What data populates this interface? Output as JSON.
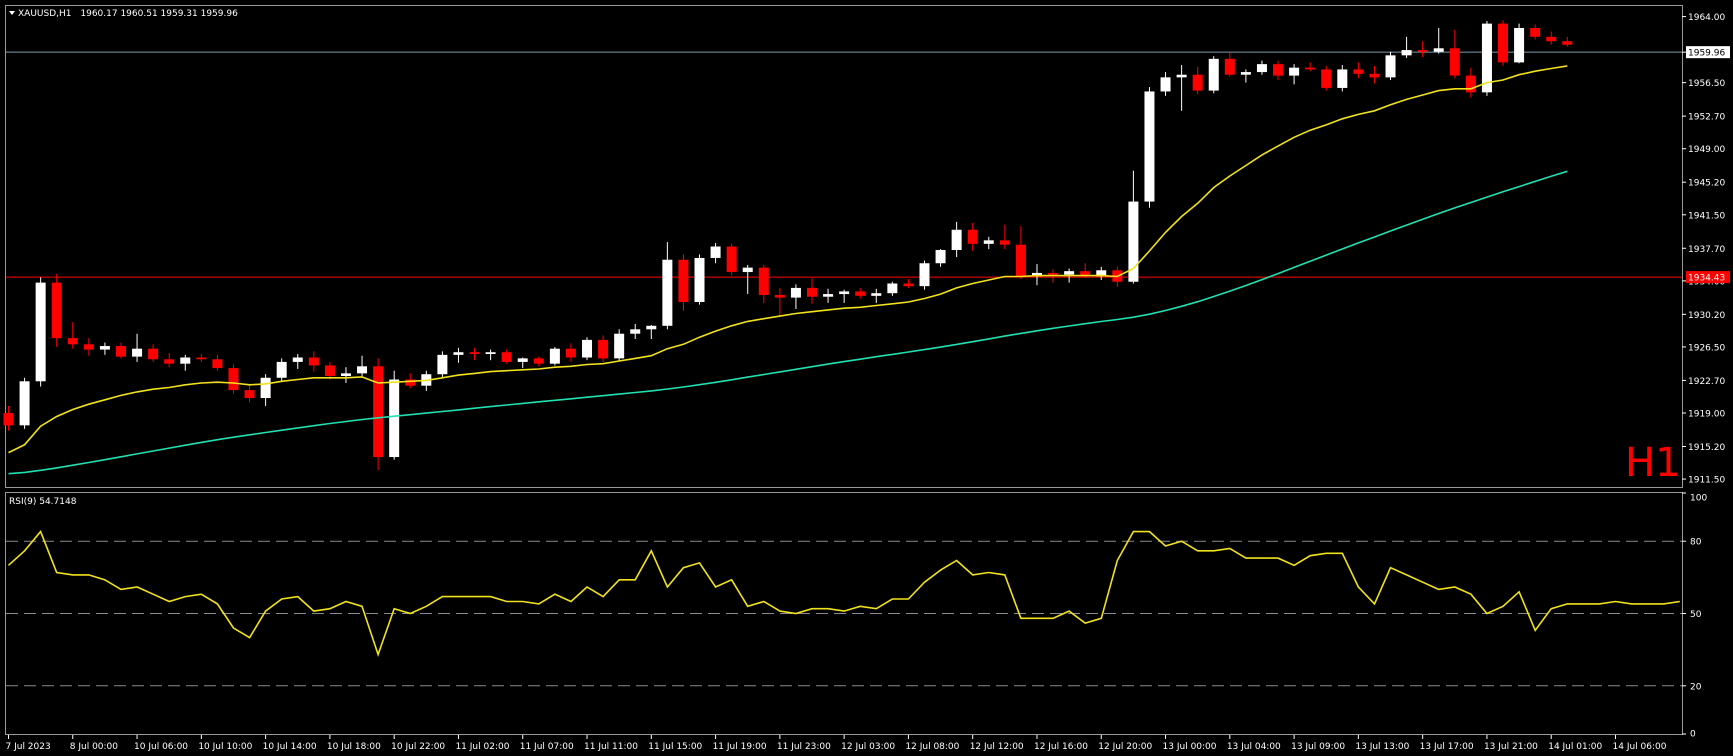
{
  "chart_data": {
    "type": "candlestick",
    "symbol": "XAUUSD,H1",
    "ohlc_header": "1960.17 1960.51 1959.31 1959.96",
    "timeframe_label": "H1",
    "colors": {
      "background": "#000000",
      "bull": "#ffffff",
      "bear": "#ff0000",
      "wick_bull": "#ffffff",
      "wick_bear": "#ff0000",
      "ma_fast": "#f2e21b",
      "ma_slow": "#20e0b0",
      "rsi": "#f2e21b",
      "ask_line": "#7f9aaa",
      "level_line": "#ff0000",
      "grid": "#ffffff"
    },
    "price_axis": {
      "ylim": [
        1910.6,
        1965.2
      ],
      "ticks": [
        "1964.00",
        "1959.96",
        "1956.50",
        "1952.70",
        "1949.00",
        "1945.20",
        "1941.50",
        "1937.70",
        "1934.00",
        "1930.20",
        "1926.50",
        "1922.70",
        "1919.00",
        "1915.20",
        "1911.50"
      ],
      "tick_values": [
        1964.0,
        1959.96,
        1956.5,
        1952.7,
        1949.0,
        1945.2,
        1941.5,
        1937.7,
        1934.0,
        1930.2,
        1926.5,
        1922.7,
        1919.0,
        1915.2,
        1911.5
      ],
      "bid_label": "1959.96",
      "bid_value": 1959.96,
      "level_label": "1934.43",
      "level_value": 1934.43
    },
    "time_axis": {
      "labels": [
        "7 Jul 2023",
        "8 Jul 00:00",
        "10 Jul 06:00",
        "10 Jul 10:00",
        "10 Jul 14:00",
        "10 Jul 18:00",
        "10 Jul 22:00",
        "11 Jul 02:00",
        "11 Jul 07:00",
        "11 Jul 11:00",
        "11 Jul 15:00",
        "11 Jul 19:00",
        "11 Jul 23:00",
        "12 Jul 03:00",
        "12 Jul 08:00",
        "12 Jul 12:00",
        "12 Jul 16:00",
        "12 Jul 20:00",
        "13 Jul 00:00",
        "13 Jul 04:00",
        "13 Jul 09:00",
        "13 Jul 13:00",
        "13 Jul 17:00",
        "13 Jul 21:00",
        "14 Jul 01:00",
        "14 Jul 06:00"
      ],
      "label_bar_index": [
        0,
        4,
        8,
        12,
        16,
        20,
        24,
        28,
        32,
        36,
        40,
        44,
        48,
        52,
        56,
        60,
        64,
        68,
        72,
        76,
        80,
        84,
        88,
        92,
        96,
        100
      ]
    },
    "candles": [
      [
        1919.0,
        1919.8,
        1917.0,
        1917.6
      ],
      [
        1917.6,
        1923.0,
        1917.2,
        1922.6
      ],
      [
        1922.6,
        1934.4,
        1922.0,
        1933.8
      ],
      [
        1933.8,
        1934.8,
        1926.5,
        1927.5
      ],
      [
        1927.5,
        1929.3,
        1926.3,
        1926.8
      ],
      [
        1926.8,
        1927.5,
        1925.5,
        1926.2
      ],
      [
        1926.2,
        1927.0,
        1925.6,
        1926.6
      ],
      [
        1926.6,
        1927.0,
        1925.2,
        1925.4
      ],
      [
        1925.4,
        1928.0,
        1924.8,
        1926.3
      ],
      [
        1926.3,
        1926.8,
        1924.8,
        1925.1
      ],
      [
        1925.1,
        1925.8,
        1924.2,
        1924.6
      ],
      [
        1924.6,
        1925.6,
        1923.8,
        1925.3
      ],
      [
        1925.3,
        1925.7,
        1924.8,
        1925.1
      ],
      [
        1925.1,
        1925.6,
        1923.8,
        1924.1
      ],
      [
        1924.1,
        1924.5,
        1921.2,
        1921.6
      ],
      [
        1921.6,
        1922.2,
        1920.2,
        1920.7
      ],
      [
        1920.7,
        1923.4,
        1919.8,
        1923.0
      ],
      [
        1923.0,
        1925.2,
        1922.6,
        1924.8
      ],
      [
        1924.8,
        1925.7,
        1924.0,
        1925.3
      ],
      [
        1925.3,
        1926.0,
        1923.7,
        1924.4
      ],
      [
        1924.4,
        1924.8,
        1922.8,
        1923.2
      ],
      [
        1923.2,
        1924.2,
        1922.4,
        1923.5
      ],
      [
        1923.5,
        1925.5,
        1923.1,
        1924.3
      ],
      [
        1924.3,
        1925.2,
        1912.5,
        1914.0
      ],
      [
        1914.0,
        1923.8,
        1913.7,
        1922.8
      ],
      [
        1922.8,
        1923.5,
        1921.8,
        1922.1
      ],
      [
        1922.1,
        1923.8,
        1921.5,
        1923.4
      ],
      [
        1923.4,
        1926.0,
        1923.0,
        1925.6
      ],
      [
        1925.6,
        1926.4,
        1924.7,
        1925.9
      ],
      [
        1925.9,
        1926.4,
        1925.0,
        1925.7
      ],
      [
        1925.7,
        1926.2,
        1925.0,
        1925.9
      ],
      [
        1925.9,
        1926.2,
        1924.6,
        1924.8
      ],
      [
        1924.8,
        1925.3,
        1924.1,
        1925.2
      ],
      [
        1925.2,
        1925.4,
        1924.3,
        1924.6
      ],
      [
        1924.6,
        1926.5,
        1924.4,
        1926.3
      ],
      [
        1926.3,
        1926.9,
        1924.8,
        1925.3
      ],
      [
        1925.3,
        1927.6,
        1925.0,
        1927.3
      ],
      [
        1927.3,
        1927.8,
        1924.8,
        1925.2
      ],
      [
        1925.2,
        1928.5,
        1924.9,
        1928.0
      ],
      [
        1928.0,
        1929.1,
        1927.4,
        1928.5
      ],
      [
        1928.5,
        1929.0,
        1927.4,
        1928.9
      ],
      [
        1928.9,
        1938.4,
        1928.5,
        1936.4
      ],
      [
        1936.4,
        1937.0,
        1930.6,
        1931.6
      ],
      [
        1931.6,
        1937.0,
        1931.3,
        1936.6
      ],
      [
        1936.6,
        1938.3,
        1936.0,
        1937.9
      ],
      [
        1937.9,
        1938.2,
        1934.6,
        1935.0
      ],
      [
        1935.0,
        1935.8,
        1932.5,
        1935.5
      ],
      [
        1935.5,
        1935.8,
        1931.5,
        1932.4
      ],
      [
        1932.4,
        1933.2,
        1930.0,
        1932.1
      ],
      [
        1932.1,
        1933.6,
        1930.8,
        1933.2
      ],
      [
        1933.2,
        1934.3,
        1931.4,
        1932.2
      ],
      [
        1932.2,
        1933.1,
        1931.5,
        1932.5
      ],
      [
        1932.5,
        1933.0,
        1931.5,
        1932.8
      ],
      [
        1932.8,
        1933.2,
        1932.0,
        1932.3
      ],
      [
        1932.3,
        1933.1,
        1931.5,
        1932.6
      ],
      [
        1932.6,
        1933.9,
        1932.3,
        1933.7
      ],
      [
        1933.7,
        1934.2,
        1933.2,
        1933.4
      ],
      [
        1933.4,
        1936.3,
        1933.0,
        1936.0
      ],
      [
        1936.0,
        1937.6,
        1935.6,
        1937.5
      ],
      [
        1937.5,
        1940.7,
        1936.7,
        1939.8
      ],
      [
        1939.8,
        1940.6,
        1937.4,
        1938.2
      ],
      [
        1938.2,
        1939.0,
        1937.6,
        1938.6
      ],
      [
        1938.6,
        1940.4,
        1937.6,
        1938.1
      ],
      [
        1938.1,
        1940.2,
        1934.2,
        1934.5
      ],
      [
        1934.5,
        1935.9,
        1933.5,
        1934.9
      ],
      [
        1934.9,
        1935.3,
        1933.8,
        1934.7
      ],
      [
        1934.7,
        1935.4,
        1933.8,
        1935.1
      ],
      [
        1935.1,
        1936.0,
        1934.3,
        1934.5
      ],
      [
        1934.5,
        1935.6,
        1934.1,
        1935.2
      ],
      [
        1935.2,
        1935.6,
        1933.3,
        1933.9
      ],
      [
        1933.9,
        1946.5,
        1933.7,
        1943.0
      ],
      [
        1943.0,
        1956.0,
        1942.3,
        1955.5
      ],
      [
        1955.5,
        1957.7,
        1955.0,
        1957.1
      ],
      [
        1957.1,
        1958.5,
        1953.3,
        1957.4
      ],
      [
        1957.4,
        1958.3,
        1955.2,
        1955.6
      ],
      [
        1955.6,
        1959.5,
        1955.3,
        1959.2
      ],
      [
        1959.2,
        1959.9,
        1957.2,
        1957.4
      ],
      [
        1957.4,
        1958.0,
        1956.5,
        1957.7
      ],
      [
        1957.7,
        1959.0,
        1957.4,
        1958.6
      ],
      [
        1958.6,
        1959.0,
        1956.8,
        1957.3
      ],
      [
        1957.3,
        1958.6,
        1956.3,
        1958.2
      ],
      [
        1958.2,
        1958.8,
        1957.8,
        1958.0
      ],
      [
        1958.0,
        1958.4,
        1955.6,
        1955.9
      ],
      [
        1955.9,
        1958.5,
        1955.5,
        1958.0
      ],
      [
        1958.0,
        1958.8,
        1957.0,
        1957.5
      ],
      [
        1957.5,
        1958.4,
        1956.4,
        1957.1
      ],
      [
        1957.1,
        1960.0,
        1956.8,
        1959.6
      ],
      [
        1959.6,
        1961.7,
        1959.3,
        1960.2
      ],
      [
        1960.2,
        1961.2,
        1959.4,
        1960.0
      ],
      [
        1960.0,
        1962.7,
        1959.8,
        1960.4
      ],
      [
        1960.4,
        1962.5,
        1957.0,
        1957.3
      ],
      [
        1957.3,
        1958.2,
        1954.8,
        1955.4
      ],
      [
        1955.4,
        1963.5,
        1955.0,
        1963.2
      ],
      [
        1963.2,
        1963.6,
        1958.4,
        1958.8
      ],
      [
        1958.8,
        1963.2,
        1958.7,
        1962.7
      ],
      [
        1962.7,
        1963.1,
        1961.4,
        1961.7
      ],
      [
        1961.7,
        1962.3,
        1960.8,
        1961.2
      ],
      [
        1961.2,
        1961.7,
        1960.6,
        1960.8
      ]
    ]
  },
  "rsi": {
    "label": "RSI(9) 54.7148",
    "ylim": [
      0,
      100
    ],
    "ticks": [
      "100",
      "80",
      "50",
      "20",
      "0"
    ],
    "tick_values": [
      100,
      80,
      50,
      20,
      0
    ],
    "levels": [
      80,
      50,
      20
    ],
    "values": [
      70,
      76,
      84,
      67,
      66,
      66,
      64,
      60,
      61,
      58,
      55,
      57,
      58,
      54,
      44,
      40,
      51,
      56,
      57,
      51,
      52,
      55,
      53,
      33,
      52,
      50,
      53,
      57,
      57,
      57,
      57,
      55,
      55,
      54,
      58,
      55,
      61,
      57,
      64,
      64,
      76,
      61,
      69,
      71,
      61,
      64,
      53,
      55,
      51,
      50,
      52,
      52,
      51,
      53,
      52,
      56,
      56,
      63,
      68,
      72,
      66,
      67,
      66,
      48,
      48,
      48,
      51,
      46,
      48,
      72,
      84,
      84,
      78,
      80,
      76,
      76,
      77,
      73,
      73,
      73,
      70,
      74,
      75,
      75,
      61,
      54,
      69,
      66,
      63,
      60,
      61,
      58,
      50,
      53,
      59,
      43,
      52,
      54,
      54,
      54,
      55,
      54,
      54,
      54,
      55
    ]
  },
  "ma_fast": [
    1914.5,
    1915.4,
    1917.5,
    1918.6,
    1919.4,
    1920.0,
    1920.5,
    1921.0,
    1921.4,
    1921.7,
    1921.9,
    1922.2,
    1922.4,
    1922.5,
    1922.4,
    1922.2,
    1922.3,
    1922.6,
    1922.8,
    1923.0,
    1923.0,
    1923.0,
    1923.1,
    1922.4,
    1922.5,
    1922.6,
    1922.7,
    1923.0,
    1923.3,
    1923.5,
    1923.7,
    1923.8,
    1923.9,
    1924.0,
    1924.2,
    1924.3,
    1924.5,
    1924.6,
    1924.9,
    1925.2,
    1925.5,
    1926.3,
    1926.8,
    1927.6,
    1928.3,
    1928.9,
    1929.4,
    1929.7,
    1930.0,
    1930.3,
    1930.5,
    1930.7,
    1930.9,
    1931.0,
    1931.2,
    1931.4,
    1931.6,
    1932.0,
    1932.5,
    1933.2,
    1933.7,
    1934.1,
    1934.5,
    1934.5,
    1934.6,
    1934.6,
    1934.6,
    1934.6,
    1934.6,
    1934.5,
    1935.4,
    1937.4,
    1939.5,
    1941.3,
    1942.8,
    1944.6,
    1945.9,
    1947.1,
    1948.3,
    1949.3,
    1950.3,
    1951.1,
    1951.7,
    1952.4,
    1952.9,
    1953.3,
    1954.0,
    1954.6,
    1955.1,
    1955.6,
    1955.8,
    1955.8,
    1956.5,
    1956.8,
    1957.4,
    1957.8,
    1958.1,
    1958.4
  ]
}
